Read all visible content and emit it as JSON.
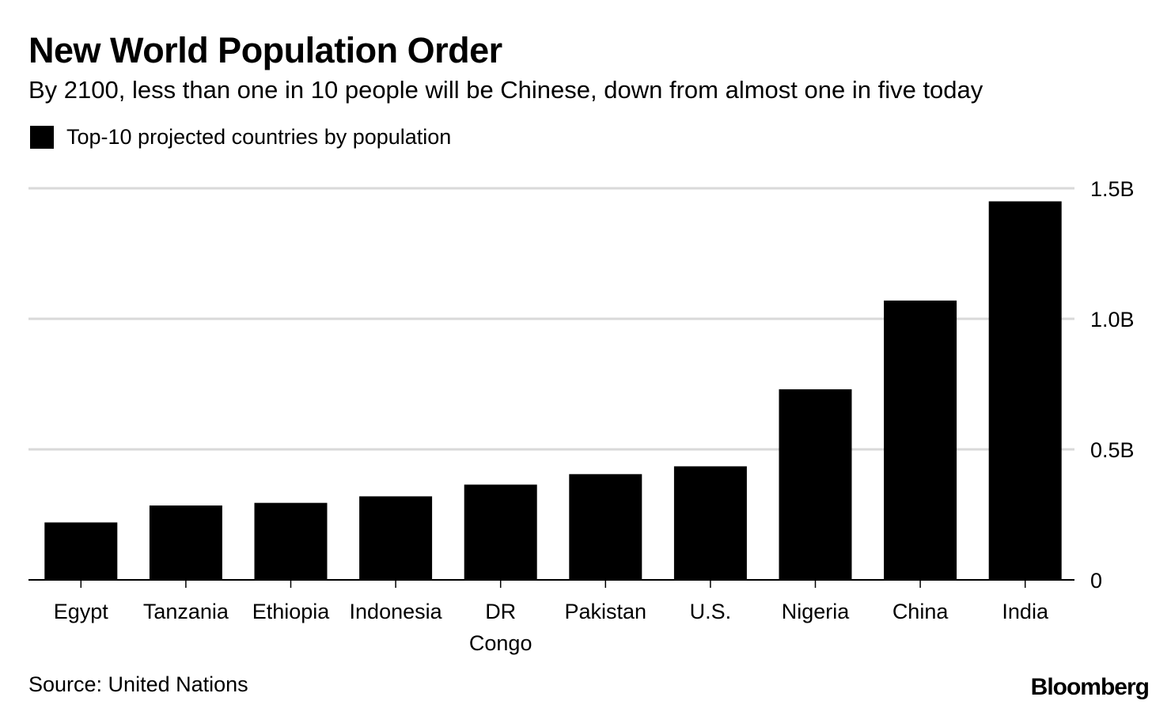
{
  "title": "New World Population Order",
  "subtitle": "By 2100, less than one in 10 people will be Chinese, down from almost one in five today",
  "legend": {
    "label": "Top-10 projected countries by population"
  },
  "source": "Source: United Nations",
  "brand": "Bloomberg",
  "colors": {
    "bar": "#000000",
    "grid": "#d9d9d9",
    "axis": "#000000"
  },
  "chart_data": {
    "type": "bar",
    "title": "New World Population Order",
    "categories": [
      "Egypt",
      "Tanzania",
      "Ethiopia",
      "Indonesia",
      "DR Congo",
      "Pakistan",
      "U.S.",
      "Nigeria",
      "China",
      "India"
    ],
    "category_labels": [
      [
        "Egypt"
      ],
      [
        "Tanzania"
      ],
      [
        "Ethiopia"
      ],
      [
        "Indonesia"
      ],
      [
        "DR",
        "Congo"
      ],
      [
        "Pakistan"
      ],
      [
        "U.S."
      ],
      [
        "Nigeria"
      ],
      [
        "China"
      ],
      [
        "India"
      ]
    ],
    "series": [
      {
        "name": "Top-10 projected countries by population",
        "values": [
          0.22,
          0.285,
          0.295,
          0.32,
          0.365,
          0.405,
          0.435,
          0.73,
          1.07,
          1.45
        ]
      }
    ],
    "ylim": [
      0,
      1.5
    ],
    "yticks": [
      0,
      0.5,
      1.0,
      1.5
    ],
    "ytick_labels": [
      "0",
      "0.5B",
      "1.0B",
      "1.5B"
    ],
    "xlabel": "",
    "ylabel": "",
    "unit": "billion people",
    "y_axis_position": "right",
    "grid": true,
    "legend_position": "top-left"
  }
}
